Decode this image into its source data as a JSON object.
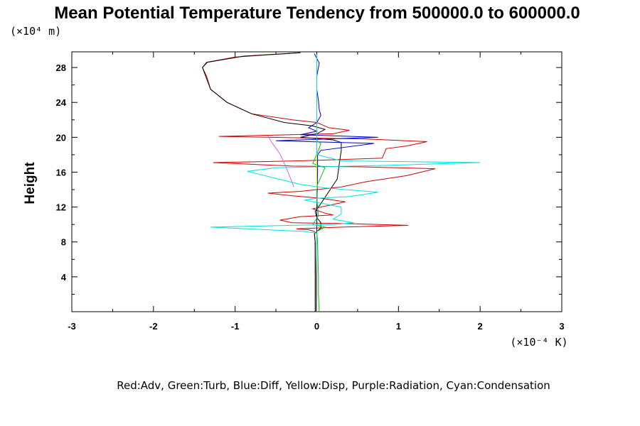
{
  "chart_data": {
    "type": "line",
    "title": "Mean Potential Temperature Tendency from 500000.0 to 600000.0",
    "y_unit": "(×10⁴ m)",
    "x_unit": "(×10⁻⁴ K)",
    "ylabel": "Height",
    "xlabel": "",
    "xlim": [
      -3,
      3
    ],
    "ylim": [
      0,
      29.8
    ],
    "x_ticks": [
      "-3",
      "-2",
      "-1",
      "0",
      "1",
      "2",
      "3"
    ],
    "y_ticks": [
      "4",
      "8",
      "12",
      "16",
      "20",
      "24",
      "28"
    ],
    "grid": false,
    "legend_note": "Red:Adv, Green:Turb, Blue:Diff, Yellow:Disp, Purple:Radiation, Cyan:Condensation",
    "series": [
      {
        "color": "#d40000",
        "points": [
          [
            -0.01,
            0
          ],
          [
            -0.01,
            4
          ],
          [
            -0.02,
            8
          ],
          [
            -0.03,
            9.2
          ],
          [
            -0.1,
            9.4
          ],
          [
            -0.25,
            9.5
          ],
          [
            0.3,
            9.7
          ],
          [
            1.12,
            9.9
          ],
          [
            0.4,
            10.1
          ],
          [
            -0.3,
            10.2
          ],
          [
            -0.45,
            10.5
          ],
          [
            -0.2,
            10.9
          ],
          [
            0.2,
            11.1
          ],
          [
            0.1,
            11.3
          ],
          [
            -0.05,
            11.8
          ],
          [
            0.35,
            12.6
          ],
          [
            0.05,
            13.0
          ],
          [
            -0.3,
            13.3
          ],
          [
            -0.6,
            13.6
          ],
          [
            -0.2,
            13.8
          ],
          [
            0.3,
            14.3
          ],
          [
            0.6,
            14.9
          ],
          [
            1.1,
            15.6
          ],
          [
            1.45,
            16.4
          ],
          [
            0.6,
            16.6
          ],
          [
            -0.3,
            16.7
          ],
          [
            -1.27,
            17.1
          ],
          [
            -0.2,
            17.3
          ],
          [
            0.8,
            17.6
          ],
          [
            0.85,
            18.7
          ],
          [
            1.1,
            19.0
          ],
          [
            1.35,
            19.5
          ],
          [
            0.6,
            19.8
          ],
          [
            -1.2,
            20.1
          ],
          [
            0.2,
            20.4
          ],
          [
            0.4,
            20.8
          ],
          [
            0.15,
            21.1
          ],
          [
            0.0,
            21.7
          ],
          [
            -0.3,
            22.0
          ],
          [
            -0.8,
            22.7
          ],
          [
            -1.1,
            24.0
          ],
          [
            -1.3,
            25.5
          ],
          [
            -1.35,
            27.0
          ],
          [
            -1.4,
            28.0
          ],
          [
            -1.35,
            28.6
          ],
          [
            -1.0,
            29.2
          ],
          [
            -0.2,
            29.7
          ]
        ]
      },
      {
        "color": "#000000",
        "points": [
          [
            -0.02,
            0
          ],
          [
            -0.02,
            4
          ],
          [
            -0.02,
            8
          ],
          [
            -0.03,
            8.9
          ],
          [
            0.0,
            9.2
          ],
          [
            0.05,
            9.6
          ],
          [
            0.05,
            10.2
          ],
          [
            0.0,
            10.8
          ],
          [
            -0.02,
            11.5
          ],
          [
            0.05,
            12.4
          ],
          [
            0.15,
            13.8
          ],
          [
            0.25,
            15.2
          ],
          [
            0.27,
            16.6
          ],
          [
            0.3,
            18.5
          ],
          [
            0.3,
            19.4
          ],
          [
            0.2,
            19.7
          ],
          [
            -0.2,
            20.0
          ],
          [
            0.0,
            20.4
          ],
          [
            0.1,
            20.9
          ],
          [
            -0.05,
            21.3
          ],
          [
            -0.4,
            21.7
          ],
          [
            -0.8,
            22.7
          ],
          [
            -1.1,
            24.0
          ],
          [
            -1.3,
            25.5
          ],
          [
            -1.36,
            27.0
          ],
          [
            -1.4,
            28.0
          ],
          [
            -1.34,
            28.6
          ],
          [
            -0.9,
            29.3
          ],
          [
            -0.2,
            29.7
          ]
        ]
      },
      {
        "color": "#0000d4",
        "points": [
          [
            0.0,
            0
          ],
          [
            0.0,
            4
          ],
          [
            0.0,
            8
          ],
          [
            0.0,
            12
          ],
          [
            0.01,
            16
          ],
          [
            0.01,
            18
          ],
          [
            0.05,
            18.5
          ],
          [
            0.7,
            19.3
          ],
          [
            -0.5,
            19.6
          ],
          [
            0.75,
            20.0
          ],
          [
            -0.2,
            20.3
          ],
          [
            0.0,
            20.7
          ],
          [
            -0.1,
            21.1
          ],
          [
            0.0,
            21.7
          ],
          [
            0.05,
            22.5
          ],
          [
            0.03,
            23.2
          ],
          [
            0.02,
            24.2
          ],
          [
            0.0,
            25.5
          ],
          [
            0.0,
            27.0
          ],
          [
            0.03,
            28.5
          ],
          [
            -0.03,
            29.6
          ]
        ]
      },
      {
        "color": "#00c800",
        "points": [
          [
            0.03,
            0
          ],
          [
            0.02,
            2
          ],
          [
            0.02,
            4
          ],
          [
            0.01,
            8
          ],
          [
            0.0,
            9.2
          ],
          [
            0.1,
            9.7
          ],
          [
            -0.05,
            10.0
          ],
          [
            0.02,
            11
          ],
          [
            0.0,
            13
          ],
          [
            0.0,
            14.4
          ],
          [
            0.1,
            16.5
          ],
          [
            -0.05,
            17.0
          ],
          [
            0.02,
            18.5
          ],
          [
            0.05,
            19.3
          ],
          [
            0.0,
            19.6
          ]
        ]
      },
      {
        "color": "#e6e600",
        "points": [
          [
            0.0,
            14.1
          ],
          [
            0.0,
            16.0
          ],
          [
            0.0,
            17.5
          ],
          [
            0.0,
            18.5
          ],
          [
            0.0,
            19.4
          ]
        ]
      },
      {
        "color": "#e060e0",
        "points": [
          [
            -0.28,
            14.3
          ],
          [
            -0.33,
            15.5
          ],
          [
            -0.38,
            16.6
          ],
          [
            -0.45,
            18.1
          ],
          [
            -0.55,
            19.4
          ],
          [
            -0.6,
            20.2
          ]
        ]
      },
      {
        "color": "#00e0e0",
        "points": [
          [
            0.0,
            0
          ],
          [
            0.0,
            4
          ],
          [
            0.0,
            8
          ],
          [
            0.0,
            9.0
          ],
          [
            -0.15,
            9.2
          ],
          [
            -1.3,
            9.7
          ],
          [
            -0.3,
            9.9
          ],
          [
            0.2,
            10.0
          ],
          [
            0.45,
            10.2
          ],
          [
            0.2,
            10.6
          ],
          [
            0.3,
            11.2
          ],
          [
            0.3,
            12.0
          ],
          [
            -0.15,
            12.8
          ],
          [
            0.0,
            13.0
          ],
          [
            0.4,
            13.2
          ],
          [
            0.75,
            13.7
          ],
          [
            0.1,
            14.2
          ],
          [
            -0.2,
            14.6
          ],
          [
            -0.85,
            16.1
          ],
          [
            -0.5,
            16.5
          ],
          [
            0.9,
            16.8
          ],
          [
            2.0,
            17.1
          ],
          [
            0.3,
            17.3
          ],
          [
            0.0,
            18
          ],
          [
            0.0,
            19
          ],
          [
            0.0,
            21
          ],
          [
            0.0,
            24
          ],
          [
            0.0,
            26
          ],
          [
            0.0,
            28
          ],
          [
            0.0,
            29.5
          ]
        ]
      }
    ]
  }
}
